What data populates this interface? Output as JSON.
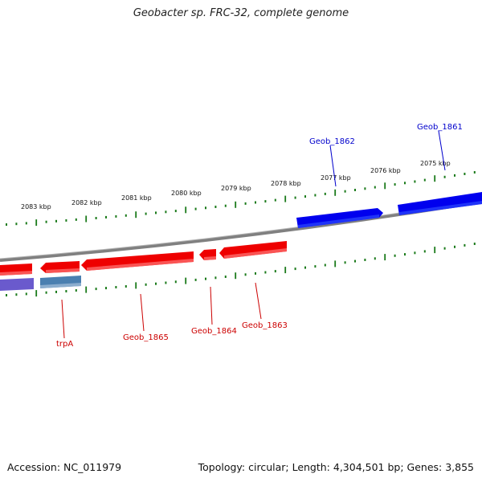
{
  "title": "Geobacter sp. FRC-32, complete genome",
  "footer": {
    "accession": "Accession: NC_011979",
    "topology": "Topology: circular; Length: 4,304,501 bp; Genes: 3,855"
  },
  "colors": {
    "backbone": "#808080",
    "forward_gene": "#0000ee",
    "reverse_gene": "#ee0000",
    "rna_gene": "#6a5acd",
    "steelblue_gene": "#4a7fb0",
    "tick": "#1a7a1a",
    "forward_label": "#0000cc",
    "reverse_label": "#cc0000"
  },
  "scale_labels": [
    "2083 kbp",
    "2082 kbp",
    "2081 kbp",
    "2080 kbp",
    "2079 kbp",
    "2078 kbp",
    "2077 kbp",
    "2076 kbp",
    "2075 kbp"
  ],
  "gene_labels": {
    "forward": [
      "Geob_1862",
      "Geob_1861"
    ],
    "reverse": [
      "trpA",
      "Geob_1865",
      "Geob_1864",
      "Geob_1863"
    ]
  }
}
